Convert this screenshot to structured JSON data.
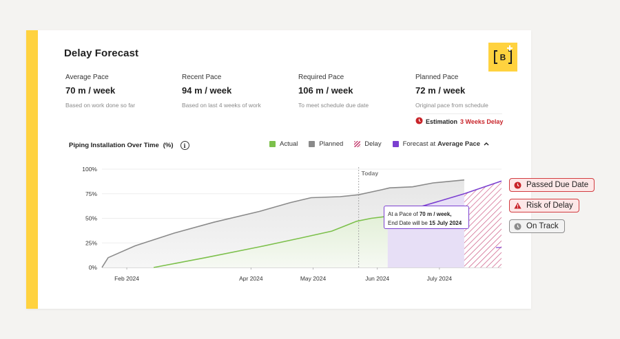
{
  "header": {
    "title": "Delay Forecast",
    "logo_letter": "B"
  },
  "stats": [
    {
      "label": "Average Pace",
      "value": "70 m / week",
      "sub": "Based on work done so far"
    },
    {
      "label": "Recent Pace",
      "value": "94 m / week",
      "sub": "Based on last 4 weeks of work"
    },
    {
      "label": "Required Pace",
      "value": "106 m / week",
      "sub": "To meet schedule due date"
    },
    {
      "label": "Planned Pace",
      "value": "72 m / week",
      "sub": "Original pace from schedule"
    }
  ],
  "estimation": {
    "label": "Estimation",
    "value": "3 Weeks Delay"
  },
  "chart_header": {
    "title": "Piping Installation Over Time",
    "unit": "(%)"
  },
  "legend": {
    "actual": "Actual",
    "planned": "Planned",
    "delay": "Delay",
    "forecast_prefix": "Forecast at",
    "forecast_pace": "Average Pace"
  },
  "tooltip": {
    "line1_prefix": "At a Pace of",
    "line1_value": "70 m / week,",
    "line2_prefix": "End Date will be",
    "line2_value": "15 July 2024"
  },
  "badges": {
    "passed_due": "Passed Due Date",
    "risk": "Risk of Delay",
    "on_track": "On Track"
  },
  "colors": {
    "accent": "#ffd23f",
    "actual": "#7cc04b",
    "planned": "#8a8a8a",
    "forecast": "#7b3fd0",
    "delay": "#c94f7c",
    "danger": "#c8242a"
  },
  "chart_data": {
    "type": "line",
    "ylabel": "",
    "xlabel": "",
    "ylim": [
      0,
      100
    ],
    "x_domain": [
      "2024-01-20",
      "2024-07-31"
    ],
    "yticks": [
      "0%",
      "25%",
      "50%",
      "75%",
      "100%"
    ],
    "ytick_values": [
      0,
      25,
      50,
      75,
      100
    ],
    "xticks": [
      {
        "label": "Feb 2024",
        "date": "2024-02-01"
      },
      {
        "label": "Apr 2024",
        "date": "2024-04-01"
      },
      {
        "label": "May 2024",
        "date": "2024-05-01"
      },
      {
        "label": "Jun 2024",
        "date": "2024-06-01"
      },
      {
        "label": "July 2024",
        "date": "2024-07-01"
      }
    ],
    "today": {
      "label": "Today",
      "date": "2024-05-23"
    },
    "series": [
      {
        "name": "Planned",
        "points": [
          [
            "2024-01-20",
            0
          ],
          [
            "2024-01-23",
            10
          ],
          [
            "2024-02-05",
            22
          ],
          [
            "2024-02-24",
            35
          ],
          [
            "2024-03-14",
            46
          ],
          [
            "2024-04-05",
            57
          ],
          [
            "2024-04-20",
            66
          ],
          [
            "2024-04-30",
            71
          ],
          [
            "2024-05-14",
            72
          ],
          [
            "2024-05-23",
            74
          ],
          [
            "2024-06-03",
            79
          ],
          [
            "2024-06-07",
            81
          ],
          [
            "2024-06-18",
            82
          ],
          [
            "2024-06-28",
            86
          ],
          [
            "2024-07-13",
            89
          ]
        ]
      },
      {
        "name": "Actual",
        "points": [
          [
            "2024-02-14",
            0
          ],
          [
            "2024-03-10",
            10
          ],
          [
            "2024-04-05",
            21
          ],
          [
            "2024-04-25",
            30
          ],
          [
            "2024-05-10",
            37
          ],
          [
            "2024-05-22",
            47
          ],
          [
            "2024-05-29",
            50
          ],
          [
            "2024-06-06",
            52
          ]
        ]
      },
      {
        "name": "Forecast at Average Pace",
        "points": [
          [
            "2024-06-06",
            52
          ],
          [
            "2024-07-13",
            75
          ],
          [
            "2024-07-31",
            88
          ]
        ]
      }
    ],
    "delay_range": [
      "2024-07-13",
      "2024-07-31"
    ],
    "forecast_region_start": "2024-06-06"
  }
}
